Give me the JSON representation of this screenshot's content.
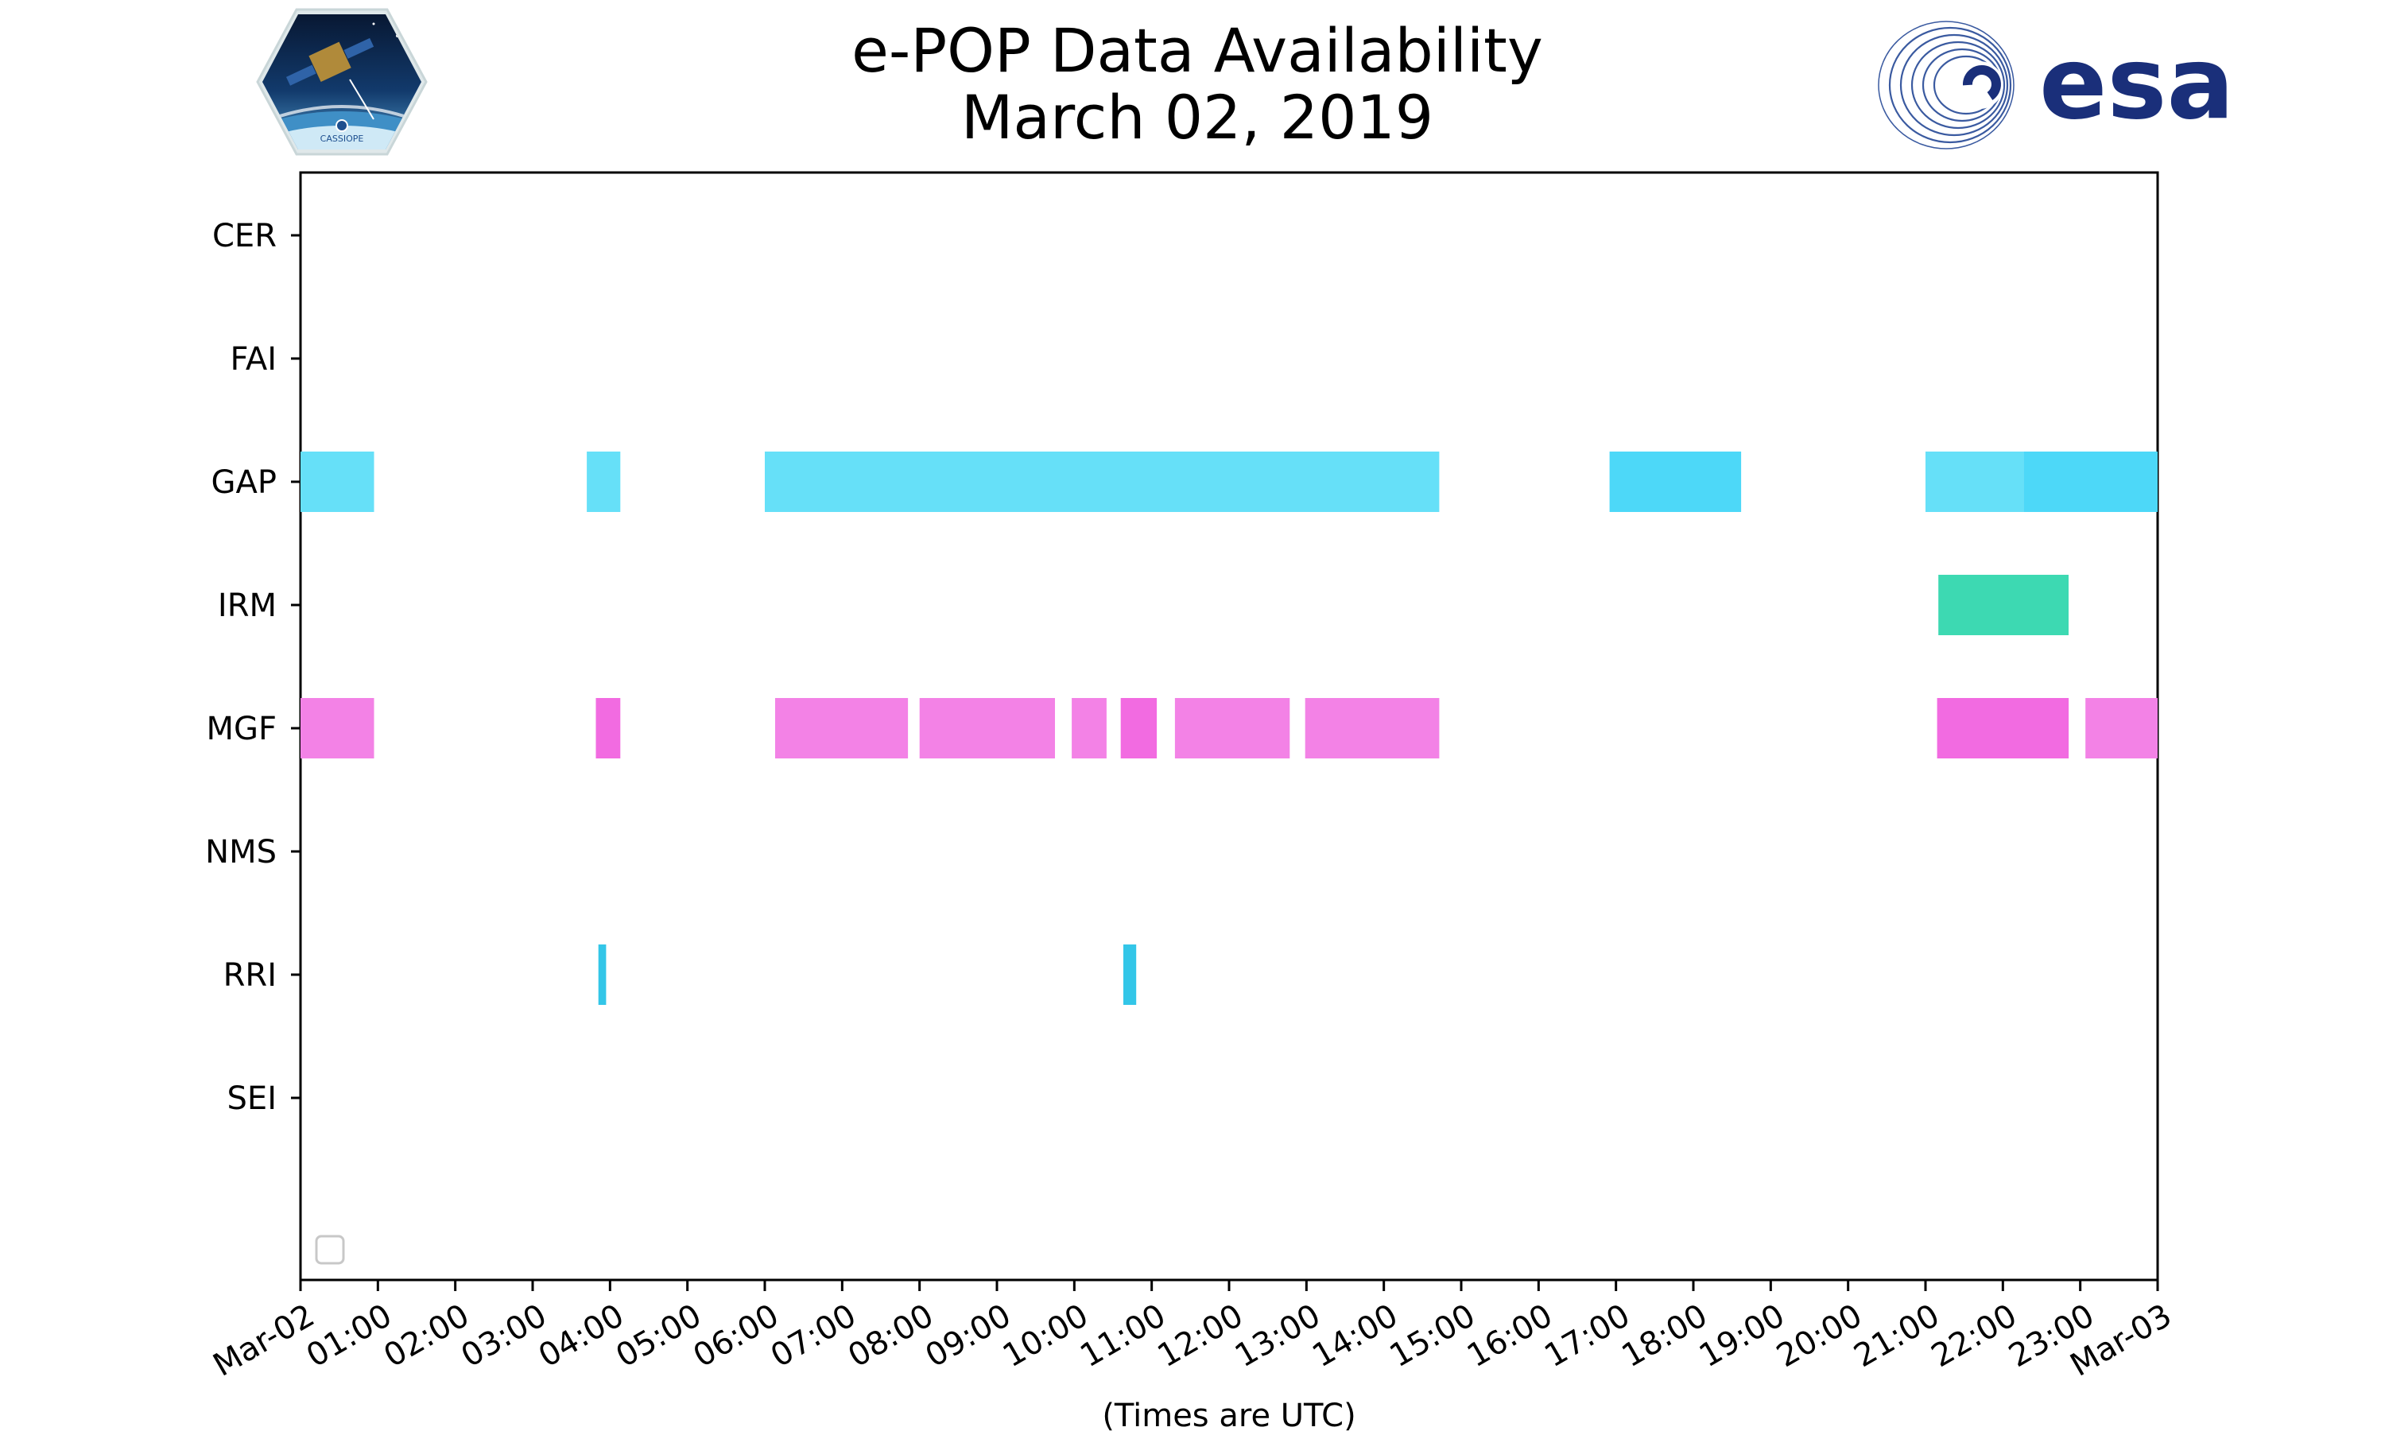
{
  "chart_data": {
    "type": "timeline",
    "title": "e-POP Data Availability",
    "subtitle": "March 02, 2019",
    "xlabel": "(Times are UTC)",
    "xlim": [
      "2019-03-02 00:00",
      "2019-03-03 00:00"
    ],
    "x_tick_labels": [
      "Mar-02",
      "01:00",
      "02:00",
      "03:00",
      "04:00",
      "05:00",
      "06:00",
      "07:00",
      "08:00",
      "09:00",
      "10:00",
      "11:00",
      "12:00",
      "13:00",
      "14:00",
      "15:00",
      "16:00",
      "17:00",
      "18:00",
      "19:00",
      "20:00",
      "21:00",
      "22:00",
      "23:00",
      "Mar-03"
    ],
    "categories": [
      "CER",
      "FAI",
      "GAP",
      "IRM",
      "MGF",
      "NMS",
      "RRI",
      "SEI"
    ],
    "grid": false,
    "legend": "lower-left (empty)",
    "series": [
      {
        "instrument": "GAP",
        "color": "#66e0f8",
        "intervals": [
          {
            "start": "00:00",
            "end": "00:57"
          },
          {
            "start": "03:42",
            "end": "04:08"
          },
          {
            "start": "06:00",
            "end": "14:43"
          },
          {
            "start": "21:00",
            "end": "22:16"
          }
        ]
      },
      {
        "instrument": "GAP",
        "color": "#4dd8f8",
        "intervals": [
          {
            "start": "16:55",
            "end": "18:37"
          },
          {
            "start": "22:16",
            "end": "24:00"
          }
        ]
      },
      {
        "instrument": "IRM",
        "color": "#3dd9b2",
        "intervals": [
          {
            "start": "21:10",
            "end": "22:51"
          }
        ]
      },
      {
        "instrument": "MGF",
        "color": "#f382e6",
        "intervals": [
          {
            "start": "00:00",
            "end": "00:57"
          },
          {
            "start": "06:08",
            "end": "07:51"
          },
          {
            "start": "08:00",
            "end": "09:45"
          },
          {
            "start": "09:58",
            "end": "10:25"
          },
          {
            "start": "11:18",
            "end": "12:47"
          },
          {
            "start": "12:59",
            "end": "14:43"
          },
          {
            "start": "23:04",
            "end": "24:00"
          }
        ]
      },
      {
        "instrument": "MGF",
        "color": "#f26be1",
        "intervals": [
          {
            "start": "03:49",
            "end": "04:08"
          },
          {
            "start": "10:36",
            "end": "11:04"
          },
          {
            "start": "21:09",
            "end": "22:51"
          }
        ]
      },
      {
        "instrument": "RRI",
        "color": "#33c6e8",
        "intervals": [
          {
            "start": "03:51",
            "end": "03:57"
          },
          {
            "start": "10:38",
            "end": "10:48"
          }
        ]
      }
    ]
  },
  "logos": {
    "left": {
      "name": "cassiope-logo",
      "text": "CASSIOPE"
    },
    "right": {
      "name": "esa-logo",
      "text": "esa"
    }
  }
}
